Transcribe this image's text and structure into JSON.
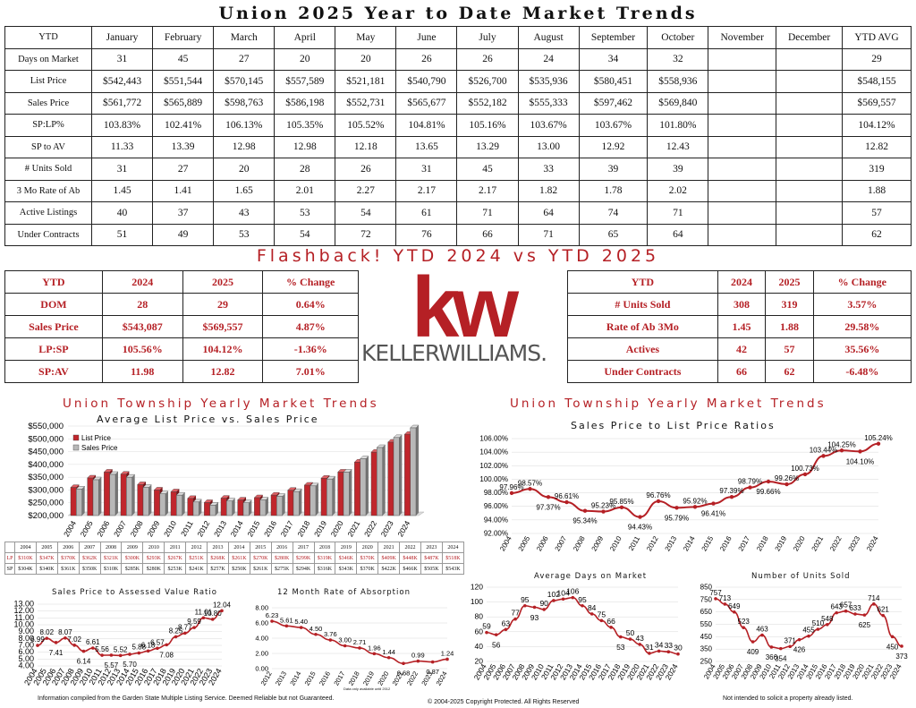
{
  "title": "Union 2025 Year to Date Market Trends",
  "main_table": {
    "header": [
      "YTD",
      "January",
      "February",
      "March",
      "April",
      "May",
      "June",
      "July",
      "August",
      "September",
      "October",
      "November",
      "December",
      "YTD AVG"
    ],
    "rows": [
      [
        "Days on Market",
        "31",
        "45",
        "27",
        "20",
        "20",
        "26",
        "26",
        "24",
        "34",
        "32",
        "",
        "",
        "29"
      ],
      [
        "List Price",
        "$542,443",
        "$551,544",
        "$570,145",
        "$557,589",
        "$521,181",
        "$540,790",
        "$526,700",
        "$535,936",
        "$580,451",
        "$558,936",
        "",
        "",
        "$548,155"
      ],
      [
        "Sales Price",
        "$561,772",
        "$565,889",
        "$598,763",
        "$586,198",
        "$552,731",
        "$565,677",
        "$552,182",
        "$555,333",
        "$597,462",
        "$569,840",
        "",
        "",
        "$569,557"
      ],
      [
        "SP:LP%",
        "103.83%",
        "102.41%",
        "106.13%",
        "105.35%",
        "105.52%",
        "104.81%",
        "105.16%",
        "103.67%",
        "103.67%",
        "101.80%",
        "",
        "",
        "104.12%"
      ],
      [
        "SP to AV",
        "11.33",
        "13.39",
        "12.98",
        "12.98",
        "12.18",
        "13.65",
        "13.29",
        "13.00",
        "12.92",
        "12.43",
        "",
        "",
        "12.82"
      ],
      [
        "# Units Sold",
        "31",
        "27",
        "20",
        "28",
        "26",
        "31",
        "45",
        "33",
        "39",
        "39",
        "",
        "",
        "319"
      ],
      [
        "3 Mo Rate of Ab",
        "1.45",
        "1.41",
        "1.65",
        "2.01",
        "2.27",
        "2.17",
        "2.17",
        "1.82",
        "1.78",
        "2.02",
        "",
        "",
        "1.88"
      ],
      [
        "Active Listings",
        "40",
        "37",
        "43",
        "53",
        "54",
        "61",
        "71",
        "64",
        "74",
        "71",
        "",
        "",
        "57"
      ],
      [
        "Under Contracts",
        "51",
        "49",
        "53",
        "54",
        "72",
        "76",
        "66",
        "71",
        "65",
        "64",
        "",
        "",
        "62"
      ]
    ]
  },
  "flashback_title": "Flashback!  YTD 2024 vs YTD 2025",
  "compare_left": {
    "header": [
      "YTD",
      "2024",
      "2025",
      "% Change"
    ],
    "rows": [
      [
        "DOM",
        "28",
        "29",
        "0.64%"
      ],
      [
        "Sales Price",
        "$543,087",
        "$569,557",
        "4.87%"
      ],
      [
        "LP:SP",
        "105.56%",
        "104.12%",
        "-1.36%"
      ],
      [
        "SP:AV",
        "11.98",
        "12.82",
        "7.01%"
      ]
    ]
  },
  "compare_right": {
    "header": [
      "YTD",
      "2024",
      "2025",
      "% Change"
    ],
    "rows": [
      [
        "# Units Sold",
        "308",
        "319",
        "3.57%"
      ],
      [
        "Rate of Ab 3Mo",
        "1.45",
        "1.88",
        "29.58%"
      ],
      [
        "Actives",
        "42",
        "57",
        "35.56%"
      ],
      [
        "Under Contracts",
        "66",
        "62",
        "-6.48%"
      ]
    ]
  },
  "logo": {
    "mark": "kw",
    "brand": "KELLERWILLIAMS."
  },
  "section_titles": {
    "left": "Union Township Yearly Market Trends",
    "right": "Union Township Yearly Market Trends"
  },
  "colors": {
    "accent": "#b52025",
    "bar_list": "#c0262c",
    "bar_sales": "#b8b8b8"
  },
  "chart_data": [
    {
      "id": "avg-price",
      "type": "bar",
      "title": "Average List Price vs. Sales Price",
      "categories": [
        "2004",
        "2005",
        "2006",
        "2007",
        "2008",
        "2009",
        "2010",
        "2011",
        "2012",
        "2013",
        "2014",
        "2015",
        "2016",
        "2017",
        "2018",
        "2019",
        "2020",
        "2021",
        "2022",
        "2023",
        "2024"
      ],
      "series": [
        {
          "name": "List Price",
          "values": [
            310000,
            347000,
            370000,
            362000,
            321000,
            300000,
            293000,
            267000,
            251000,
            268000,
            261000,
            270000,
            280000,
            299000,
            319000,
            346000,
            370000,
            409000,
            448000,
            487000,
            518000
          ]
        },
        {
          "name": "Sales Price",
          "values": [
            304000,
            340000,
            361000,
            350000,
            310000,
            285000,
            280000,
            253000,
            241000,
            257000,
            250000,
            261000,
            275000,
            294000,
            316000,
            343000,
            370000,
            422000,
            466000,
            505000,
            543000
          ]
        }
      ],
      "y_ticks": [
        "$550,000",
        "$500,000",
        "$450,000",
        "$400,000",
        "$350,000",
        "$300,000",
        "$250,000",
        "$200,000"
      ],
      "ylim": [
        200000,
        550000
      ],
      "legend_position": "top-left",
      "table_row_labels": [
        "LP",
        "SP"
      ],
      "table": {
        "LP": [
          "$310K",
          "$347K",
          "$370K",
          "$362K",
          "$321K",
          "$300K",
          "$293K",
          "$267K",
          "$251K",
          "$268K",
          "$261K",
          "$270K",
          "$280K",
          "$299K",
          "$319K",
          "$346K",
          "$370K",
          "$409K",
          "$448K",
          "$487K",
          "$518K"
        ],
        "SP": [
          "$304K",
          "$340K",
          "$361K",
          "$350K",
          "$310K",
          "$285K",
          "$280K",
          "$253K",
          "$241K",
          "$257K",
          "$250K",
          "$261K",
          "$275K",
          "$294K",
          "$316K",
          "$343K",
          "$370K",
          "$422K",
          "$466K",
          "$505K",
          "$543K"
        ]
      }
    },
    {
      "id": "sp-lp",
      "type": "line",
      "title": "Sales Price to List Price Ratios",
      "x": [
        "2004",
        "2005",
        "2006",
        "2007",
        "2008",
        "2009",
        "2010",
        "2011",
        "2012",
        "2013",
        "2014",
        "2015",
        "2016",
        "2017",
        "2018",
        "2019",
        "2020",
        "2021",
        "2022",
        "2023",
        "2024"
      ],
      "values": [
        97.96,
        98.57,
        97.37,
        96.61,
        95.34,
        95.23,
        95.85,
        94.43,
        96.76,
        95.79,
        95.92,
        96.41,
        97.39,
        98.79,
        99.66,
        99.26,
        100.73,
        103.44,
        104.25,
        104.1,
        105.24
      ],
      "labels": [
        "97.96%",
        "98.57%",
        "97.37%",
        "96.61%",
        "95.34%",
        "95.23%",
        "95.85%",
        "94.43%",
        "96.76%",
        "95.79%",
        "95.92%",
        "96.41%",
        "97.39%",
        "98.79%",
        "99.66%",
        "99.26%",
        "100.73%",
        "103.44%",
        "104.25%",
        "104.10%",
        "105.24%"
      ],
      "y_ticks": [
        "106.00%",
        "104.00%",
        "102.00%",
        "100.00%",
        "98.00%",
        "96.00%",
        "94.00%",
        "92.00%"
      ],
      "ylim": [
        92,
        106
      ]
    },
    {
      "id": "sp-av",
      "type": "line",
      "title": "Sales Price to Assessed Value Ratio",
      "x": [
        "2004",
        "2005",
        "2006",
        "2007",
        "2008",
        "2009",
        "2010",
        "2011",
        "2012",
        "2013",
        "2014",
        "2015",
        "2016",
        "2017",
        "2018",
        "2019",
        "2020",
        "2021",
        "2022",
        "2023",
        "2024"
      ],
      "values": [
        6.99,
        8.02,
        7.41,
        8.07,
        7.02,
        6.14,
        6.61,
        5.56,
        5.57,
        5.52,
        5.7,
        5.88,
        6.18,
        6.57,
        7.08,
        8.25,
        8.77,
        9.59,
        11.01,
        10.8,
        12.04
      ],
      "labels": [
        "6.99",
        "8.02",
        "7.41",
        "8.07",
        "7.02",
        "6.14",
        "6.61",
        "5.56",
        "5.57",
        "5.52",
        "5.70",
        "5.88",
        "6.18",
        "6.57",
        "7.08",
        "8.25",
        "8.77",
        "9.59",
        "11.01",
        "10.80",
        "12.04"
      ],
      "y_ticks": [
        "13.00",
        "12.00",
        "11.00",
        "10.00",
        "9.00",
        "8.00",
        "7.00",
        "6.00",
        "5.00",
        "4.00"
      ],
      "ylim": [
        4,
        13
      ]
    },
    {
      "id": "absorption",
      "type": "line",
      "title": "12 Month Rate of Absorption",
      "x": [
        "2012",
        "2013",
        "2014",
        "2015",
        "2016",
        "2017",
        "2018",
        "2019",
        "2020",
        "2021",
        "2022",
        "2023",
        "2024"
      ],
      "values": [
        6.23,
        5.61,
        5.4,
        4.5,
        3.76,
        3.0,
        2.71,
        1.96,
        1.44,
        0.68,
        0.99,
        0.87,
        1.24
      ],
      "labels": [
        "6.23",
        "5.61",
        "5.40",
        "4.50",
        "3.76",
        "3.00",
        "2.71",
        "1.96",
        "1.44",
        "0.68",
        "0.99",
        "0.87",
        "1.24"
      ],
      "y_ticks": [
        "8.00",
        "6.00",
        "4.00",
        "2.00",
        "0.00"
      ],
      "ylim": [
        0,
        8
      ],
      "note": "Data only available until 2012"
    },
    {
      "id": "dom",
      "type": "line",
      "title": "Average Days on Market",
      "x": [
        "2004",
        "2005",
        "2006",
        "2007",
        "2008",
        "2009",
        "2010",
        "2011",
        "2012",
        "2013",
        "2014",
        "2015",
        "2016",
        "2017",
        "2018",
        "2019",
        "2020",
        "2021",
        "2022",
        "2023",
        "2024"
      ],
      "values": [
        59,
        56,
        63,
        77,
        95,
        93,
        90,
        102,
        104,
        106,
        95,
        84,
        75,
        66,
        53,
        50,
        43,
        31,
        34,
        33,
        30
      ],
      "labels": [
        "59",
        "56",
        "63",
        "77",
        "95",
        "93",
        "90",
        "102",
        "104",
        "106",
        "95",
        "84",
        "75",
        "66",
        "53",
        "50",
        "43",
        "31",
        "34",
        "33",
        "30"
      ],
      "y_ticks": [
        "120",
        "100",
        "80",
        "60",
        "40",
        "20"
      ],
      "ylim": [
        20,
        120
      ]
    },
    {
      "id": "units",
      "type": "line",
      "title": "Number of Units Sold",
      "x": [
        "2004",
        "2005",
        "2006",
        "2007",
        "2008",
        "2009",
        "2010",
        "2011",
        "2012",
        "2013",
        "2014",
        "2015",
        "2016",
        "2017",
        "2018",
        "2019",
        "2020",
        "2021",
        "2022",
        "2023",
        "2024"
      ],
      "values": [
        757,
        713,
        649,
        523,
        409,
        463,
        366,
        354,
        371,
        426,
        455,
        510,
        548,
        643,
        657,
        633,
        625,
        714,
        621,
        450,
        373
      ],
      "labels": [
        "757",
        "713",
        "649",
        "523",
        "409",
        "463",
        "366",
        "354",
        "371",
        "426",
        "455",
        "510",
        "548",
        "643",
        "657",
        "633",
        "625",
        "714",
        "621",
        "450",
        "373"
      ],
      "y_ticks": [
        "850",
        "750",
        "650",
        "550",
        "450",
        "350",
        "250"
      ],
      "ylim": [
        250,
        850
      ]
    }
  ],
  "footer": {
    "left": "Information compiled from the Garden State Multiple Listing Service.  Deemed Reliable but not Guaranteed.",
    "middle": "© 2004-2025 Copyright Protected.  All Rights Reserved",
    "right": "Not intended to solicit a property already listed."
  }
}
